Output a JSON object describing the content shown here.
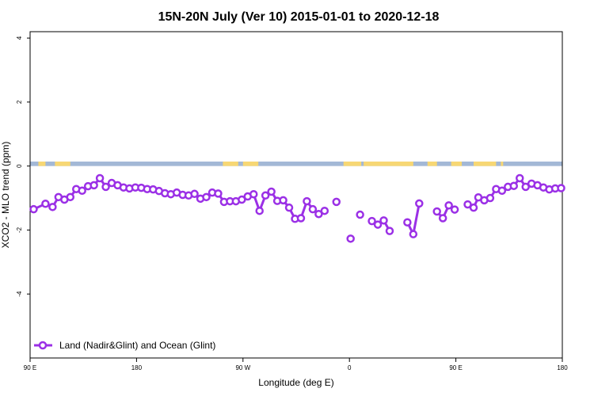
{
  "chart_data": {
    "type": "line",
    "title": "15N-20N July (Ver 10)   2015-01-01 to 2020-12-18",
    "xlabel": "Longitude (deg E)",
    "ylabel": "XCO2 - MLO trend (ppm)",
    "xlim": [
      90,
      540
    ],
    "ylim": [
      -6,
      4.2
    ],
    "x_ticks": [
      {
        "value": 90,
        "label": "90 E"
      },
      {
        "value": 180,
        "label": "180"
      },
      {
        "value": 270,
        "label": "90 W"
      },
      {
        "value": 360,
        "label": "0"
      },
      {
        "value": 450,
        "label": "90 E"
      },
      {
        "value": 540,
        "label": "180"
      }
    ],
    "y_ticks": [
      {
        "value": 4,
        "label": "4"
      },
      {
        "value": 2,
        "label": "2"
      },
      {
        "value": 0,
        "label": "0"
      },
      {
        "value": -2,
        "label": "-2"
      },
      {
        "value": -4,
        "label": "-4"
      }
    ],
    "grid": false,
    "legend_position": "bottom-left",
    "land_ocean_band": {
      "y_range": [
        0,
        0.14
      ],
      "ocean_color": "#a3b8d6",
      "land_color": "#f7d774",
      "land_spans": [
        [
          97,
          103
        ],
        [
          111,
          124
        ],
        [
          253,
          266
        ],
        [
          270,
          283
        ],
        [
          355,
          370
        ],
        [
          372,
          411
        ],
        [
          404,
          414
        ],
        [
          426,
          434
        ],
        [
          446,
          455
        ],
        [
          465,
          484
        ],
        [
          488,
          490
        ]
      ]
    },
    "series": [
      {
        "name": "Land (Nadir&Glint) and Ocean (Glint)",
        "color": "#9b30e6",
        "segments": [
          [
            [
              93,
              -1.35
            ],
            [
              103,
              -1.18
            ],
            [
              109,
              -1.28
            ],
            [
              114,
              -0.97
            ],
            [
              119,
              -1.05
            ],
            [
              124,
              -0.97
            ],
            [
              129,
              -0.72
            ],
            [
              134,
              -0.77
            ],
            [
              139,
              -0.63
            ],
            [
              144,
              -0.6
            ],
            [
              149,
              -0.38
            ],
            [
              154,
              -0.65
            ],
            [
              159,
              -0.53
            ],
            [
              164,
              -0.6
            ],
            [
              169,
              -0.67
            ],
            [
              174,
              -0.7
            ],
            [
              179,
              -0.67
            ],
            [
              184,
              -0.68
            ],
            [
              189,
              -0.72
            ],
            [
              194,
              -0.73
            ],
            [
              199,
              -0.78
            ],
            [
              204,
              -0.85
            ],
            [
              209,
              -0.88
            ],
            [
              214,
              -0.83
            ],
            [
              219,
              -0.9
            ],
            [
              224,
              -0.92
            ],
            [
              229,
              -0.87
            ],
            [
              234,
              -1.02
            ],
            [
              239,
              -0.97
            ],
            [
              244,
              -0.83
            ],
            [
              249,
              -0.86
            ],
            [
              254,
              -1.12
            ],
            [
              259,
              -1.1
            ],
            [
              264,
              -1.1
            ],
            [
              269,
              -1.05
            ],
            [
              274,
              -0.95
            ],
            [
              279,
              -0.88
            ],
            [
              284,
              -1.4
            ],
            [
              289,
              -0.92
            ],
            [
              294,
              -0.8
            ],
            [
              299,
              -1.09
            ],
            [
              304,
              -1.07
            ],
            [
              309,
              -1.3
            ],
            [
              314,
              -1.65
            ],
            [
              319,
              -1.63
            ],
            [
              324,
              -1.1
            ],
            [
              329,
              -1.35
            ],
            [
              334,
              -1.5
            ],
            [
              339,
              -1.4
            ]
          ],
          [
            [
              349,
              -1.12
            ]
          ],
          [
            [
              361,
              -2.27
            ]
          ],
          [
            [
              369,
              -1.52
            ]
          ],
          [
            [
              379,
              -1.72
            ],
            [
              384,
              -1.83
            ],
            [
              389,
              -1.7
            ],
            [
              394,
              -2.03
            ]
          ],
          [
            [
              409,
              -1.76
            ],
            [
              414,
              -2.13
            ],
            [
              419,
              -1.17
            ]
          ],
          [
            [
              434,
              -1.42
            ],
            [
              439,
              -1.63
            ],
            [
              444,
              -1.23
            ],
            [
              449,
              -1.36
            ]
          ],
          [
            [
              460,
              -1.2
            ],
            [
              465,
              -1.3
            ],
            [
              469,
              -0.98
            ],
            [
              474,
              -1.07
            ],
            [
              479,
              -1.0
            ],
            [
              484,
              -0.72
            ],
            [
              489,
              -0.77
            ],
            [
              494,
              -0.65
            ],
            [
              499,
              -0.62
            ],
            [
              504,
              -0.38
            ],
            [
              509,
              -0.65
            ],
            [
              514,
              -0.55
            ],
            [
              519,
              -0.6
            ],
            [
              524,
              -0.67
            ],
            [
              529,
              -0.73
            ],
            [
              534,
              -0.7
            ],
            [
              539,
              -0.69
            ]
          ]
        ]
      }
    ]
  }
}
